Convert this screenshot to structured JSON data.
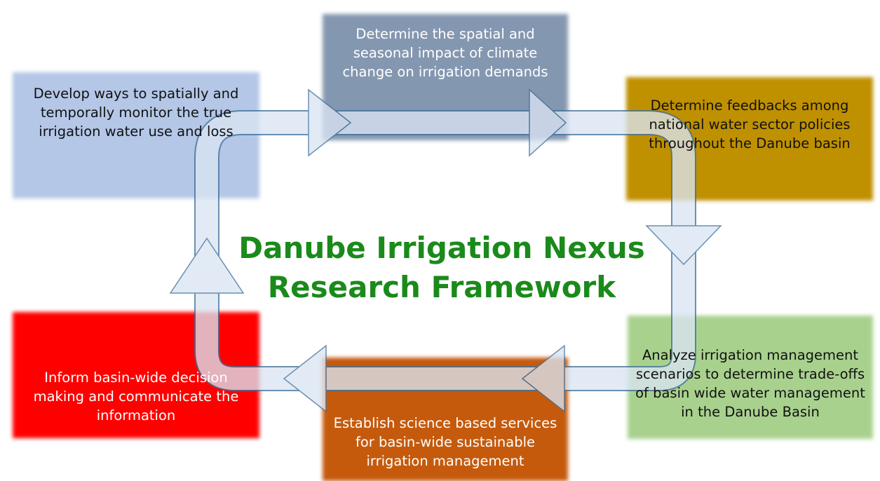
{
  "title": {
    "lines": [
      "Danube Irrigation Nexus",
      "Research Framework"
    ]
  },
  "nodes": [
    {
      "lines": [
        "Develop ways to spatially and",
        "temporally monitor the true",
        "irrigation water use and loss"
      ]
    },
    {
      "lines": [
        "Determine the spatial and",
        "seasonal impact of climate",
        "change on irrigation demands"
      ]
    },
    {
      "lines": [
        "Determine feedbacks among",
        "national water sector policies",
        "throughout the Danube basin"
      ]
    },
    {
      "lines": [
        "Analyze irrigation management",
        "scenarios to determine trade-offs",
        "of basin wide water management",
        "in the Danube Basin"
      ]
    },
    {
      "lines": [
        "Establish science based services",
        "for basin-wide sustainable",
        "irrigation management"
      ]
    },
    {
      "lines": [
        "Inform basin-wide decision",
        "making and communicate the",
        "information"
      ]
    }
  ]
}
